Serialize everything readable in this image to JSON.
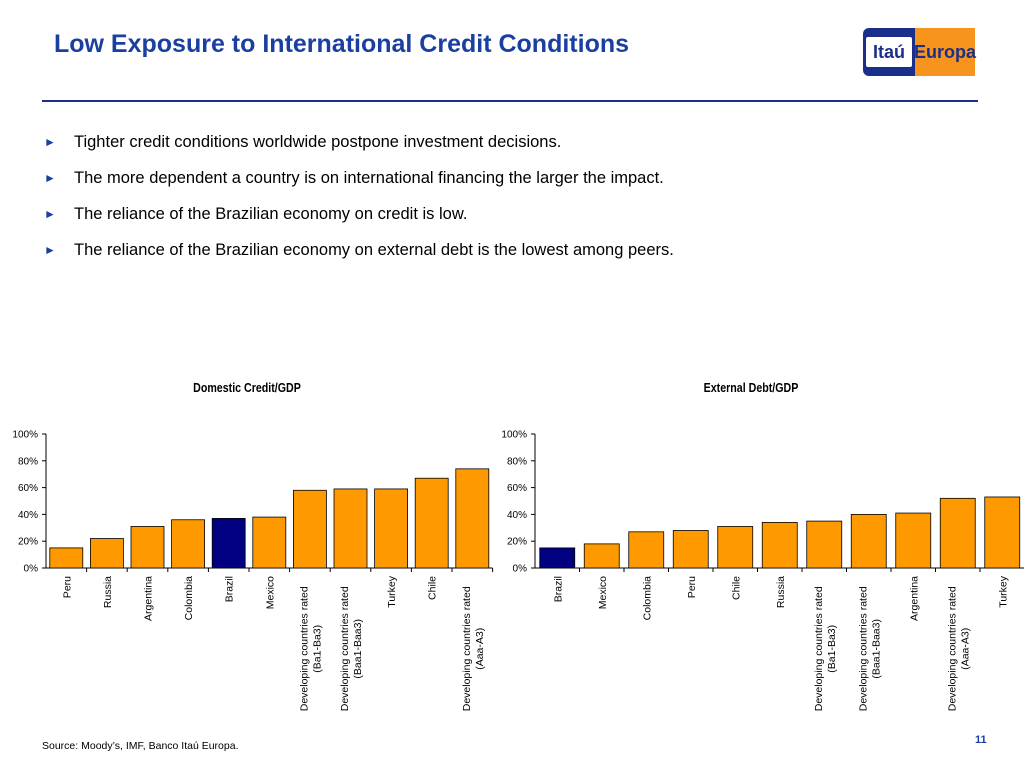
{
  "slide": {
    "title": "Low Exposure to International Credit Conditions",
    "logo": {
      "part1": "Itaú",
      "part2": "Europa"
    },
    "bullets": [
      "Tighter credit conditions worldwide postpone investment decisions.",
      "The more dependent a country is on international financing the larger the impact.",
      "The reliance of the Brazilian economy on credit is low.",
      "The reliance of the Brazilian economy on external debt is the lowest among peers."
    ],
    "source": "Source: Moody’s, IMF, Banco Itaú Europa.",
    "page_number": "11"
  },
  "colors": {
    "title": "#1a3fa0",
    "bar_default": "#ff9900",
    "bar_highlight": "#000080",
    "rule": "#1a2f8a"
  },
  "chart_data": [
    {
      "type": "bar",
      "title": "Domestic Credit/GDP",
      "categories": [
        "Peru",
        "Russia",
        "Argentina",
        "Colombia",
        "Brazil",
        "Mexico",
        "Developing countries rated (Ba1-Ba3)",
        "Developing countries rated (Baa1-Baa3)",
        "Turkey",
        "Chile",
        "Developing countries rated (Aaa-A3)"
      ],
      "values": [
        15,
        22,
        31,
        36,
        37,
        38,
        58,
        59,
        59,
        67,
        74
      ],
      "highlight": "Brazil",
      "ylim": [
        0,
        100
      ],
      "yticks": [
        "0%",
        "20%",
        "40%",
        "60%",
        "80%",
        "100%"
      ],
      "xlabel": "",
      "ylabel": "",
      "grid": false,
      "legend": "none"
    },
    {
      "type": "bar",
      "title": "External Debt/GDP",
      "categories": [
        "Brazil",
        "Mexico",
        "Colombia",
        "Peru",
        "Chile",
        "Russia",
        "Developing countries rated (Ba1-Ba3)",
        "Developing countries rated (Baa1-Baa3)",
        "Argentina",
        "Developing countries rated (Aaa-A3)",
        "Turkey"
      ],
      "values": [
        15,
        18,
        27,
        28,
        31,
        34,
        35,
        40,
        41,
        52,
        53
      ],
      "highlight": "Brazil",
      "ylim": [
        0,
        100
      ],
      "yticks": [
        "0%",
        "20%",
        "40%",
        "60%",
        "80%",
        "100%"
      ],
      "xlabel": "",
      "ylabel": "",
      "grid": false,
      "legend": "none"
    }
  ]
}
